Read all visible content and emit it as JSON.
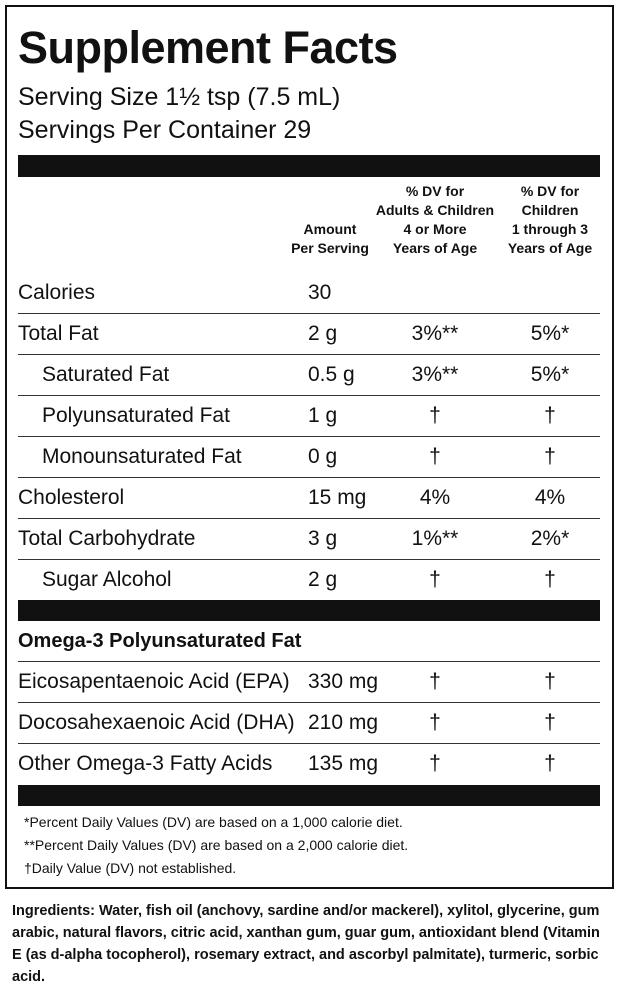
{
  "title": "Supplement Facts",
  "serving_size": "Serving Size 1½ tsp (7.5 mL)",
  "servings": "Servings Per Container 29",
  "columns": [
    [
      "Amount",
      "Per Serving"
    ],
    [
      "% DV for",
      "Adults & Children",
      "4 or More",
      "Years of Age"
    ],
    [
      "% DV for",
      "Children",
      "1 through 3",
      "Years of Age"
    ]
  ],
  "rows": [
    {
      "cells": [
        "Calories",
        "30"
      ]
    },
    {
      "cells": [
        "Total Fat",
        "2 g",
        "3%**",
        "5%*"
      ]
    },
    {
      "cells": [
        "Saturated Fat",
        "0.5 g",
        "3%**",
        "5%*"
      ],
      "indent": true
    },
    {
      "cells": [
        "Polyunsaturated Fat",
        "1 g",
        "†",
        "†"
      ],
      "indent": true
    },
    {
      "cells": [
        "Monounsaturated Fat",
        "0 g",
        "†",
        "†"
      ],
      "indent": true
    },
    {
      "cells": [
        "Cholesterol",
        "15 mg",
        "4%",
        "4%"
      ]
    },
    {
      "cells": [
        "Total Carbohydrate",
        "3 g",
        "1%**",
        "2%*"
      ]
    },
    {
      "cells": [
        "Sugar Alcohol",
        "2 g",
        "†",
        "†"
      ],
      "indent": true
    }
  ],
  "omega": {
    "heading": "Omega-3 Polyunsaturated Fat",
    "rows": [
      [
        "Eicosapentaenoic Acid (EPA)",
        "330 mg",
        "†",
        "†"
      ],
      [
        "Docosahexaenoic Acid (DHA)",
        "210 mg",
        "†",
        "†"
      ],
      [
        "Other Omega-3 Fatty Acids",
        "135 mg",
        "†",
        "†"
      ]
    ]
  },
  "footnotes": [
    "*Percent Daily Values (DV) are based on a 1,000 calorie diet.",
    "**Percent Daily Values (DV) are based on a 2,000 calorie diet.",
    "†Daily Value (DV) not established."
  ],
  "ingredients": {
    "label": "Ingredients:",
    "text": "Water, fish oil (anchovy, sardine and/or mackerel), xylitol, glycerine, gum arabic, natural flavors, citric acid, xanthan gum, guar gum, antioxidant blend (Vitamin E (as d-alpha tocopherol), rosemary extract, and ascorbyl palmitate), turmeric, sorbic acid."
  }
}
